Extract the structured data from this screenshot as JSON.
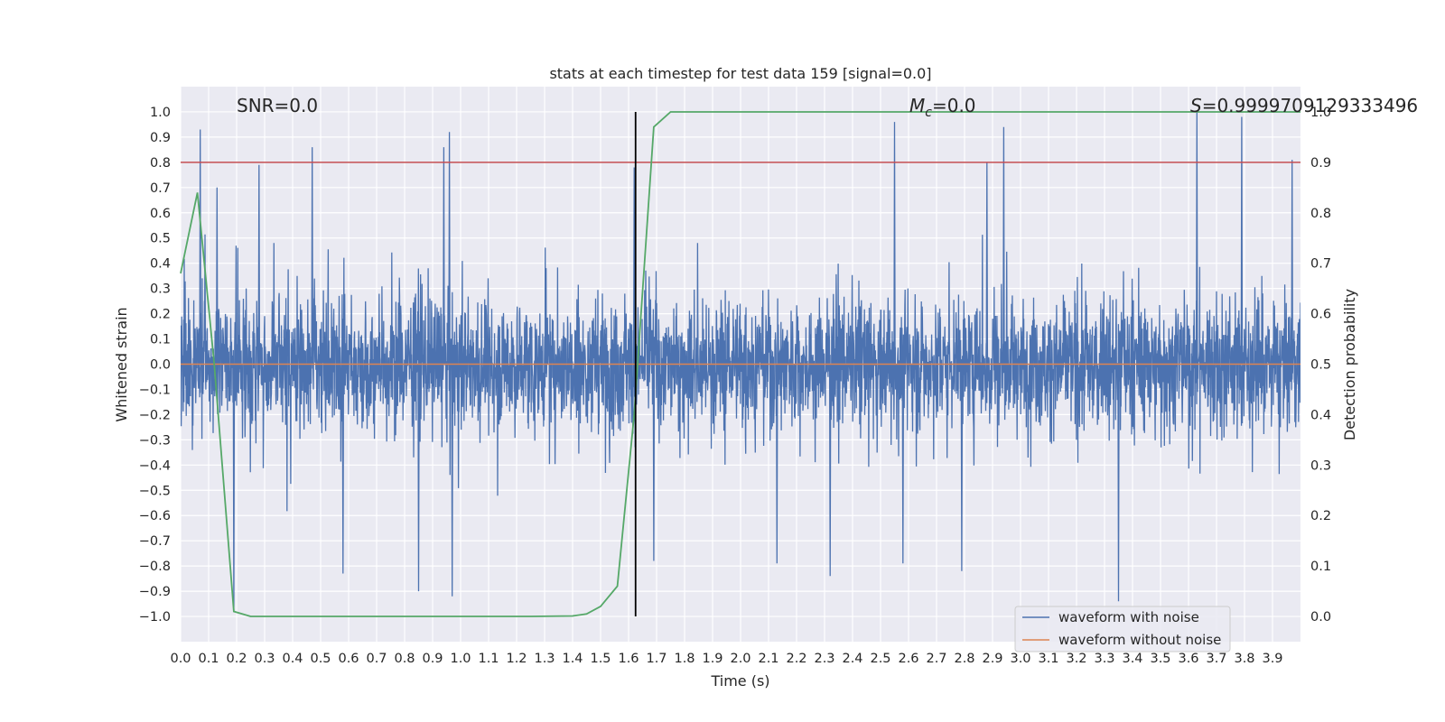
{
  "chart_data": {
    "type": "line",
    "title": "stats at each timestep for test data 159 [signal=0.0]",
    "xlabel": "Time (s)",
    "ylabel": "Whitened strain",
    "y2label": "Detection probability",
    "xlim": [
      0.0,
      4.0
    ],
    "ylim": [
      -1.1,
      1.1
    ],
    "y2lim": [
      -0.05,
      1.05
    ],
    "grid": true,
    "legend_placement": "lower-right",
    "x_ticks": [
      "0.0",
      "0.1",
      "0.2",
      "0.3",
      "0.4",
      "0.5",
      "0.6",
      "0.7",
      "0.8",
      "0.9",
      "1.0",
      "1.1",
      "1.2",
      "1.3",
      "1.4",
      "1.5",
      "1.6",
      "1.7",
      "1.8",
      "1.9",
      "2.0",
      "2.1",
      "2.2",
      "2.3",
      "2.4",
      "2.5",
      "2.6",
      "2.7",
      "2.8",
      "2.9",
      "3.0",
      "3.1",
      "3.2",
      "3.3",
      "3.4",
      "3.5",
      "3.6",
      "3.7",
      "3.8",
      "3.9"
    ],
    "y_ticks": [
      "1.0",
      "0.9",
      "0.8",
      "0.7",
      "0.6",
      "0.5",
      "0.4",
      "0.3",
      "0.2",
      "0.1",
      "0.0",
      "−0.1",
      "−0.2",
      "−0.3",
      "−0.4",
      "−0.5",
      "−0.6",
      "−0.7",
      "−0.8",
      "−0.9",
      "−1.0"
    ],
    "y2_ticks": [
      "1.0",
      "0.9",
      "0.8",
      "0.7",
      "0.6",
      "0.5",
      "0.4",
      "0.3",
      "0.2",
      "0.1",
      "0.0"
    ],
    "annotations": {
      "snr": "SNR=0.0",
      "mc_symbol": "M",
      "mc_subscript": "c",
      "mc_value": "=0.0",
      "s_symbol": "S",
      "s_value": "=0.9999709129333496"
    },
    "threshold": {
      "value": 0.9,
      "axis": "y2",
      "color": "#c44e52"
    },
    "vline": {
      "x": 1.625,
      "color": "#000000"
    },
    "series": [
      {
        "name": "waveform with noise",
        "axis": "y",
        "color": "#4c72b0",
        "noise_description": "dense noise trace, max absolute about 1.0",
        "peaks": [
          {
            "x": 0.07,
            "y": 0.93
          },
          {
            "x": 0.13,
            "y": 0.7
          },
          {
            "x": 0.19,
            "y": -0.98
          },
          {
            "x": 0.28,
            "y": 0.79
          },
          {
            "x": 0.47,
            "y": 0.86
          },
          {
            "x": 0.58,
            "y": -0.83
          },
          {
            "x": 0.85,
            "y": -0.9
          },
          {
            "x": 0.94,
            "y": 0.86
          },
          {
            "x": 0.96,
            "y": 0.92
          },
          {
            "x": 0.97,
            "y": -0.92
          },
          {
            "x": 1.62,
            "y": 0.78
          },
          {
            "x": 1.69,
            "y": -0.78
          },
          {
            "x": 2.13,
            "y": -0.79
          },
          {
            "x": 2.32,
            "y": -0.84
          },
          {
            "x": 2.55,
            "y": 0.96
          },
          {
            "x": 2.58,
            "y": -0.79
          },
          {
            "x": 2.79,
            "y": -0.82
          },
          {
            "x": 2.88,
            "y": 0.8
          },
          {
            "x": 2.94,
            "y": 0.94
          },
          {
            "x": 3.35,
            "y": -0.94
          },
          {
            "x": 3.63,
            "y": 1.0
          },
          {
            "x": 3.79,
            "y": 0.98
          },
          {
            "x": 3.97,
            "y": 0.81
          }
        ]
      },
      {
        "name": "waveform without noise",
        "axis": "y",
        "color": "#dd8452",
        "x": [
          0.0,
          4.0
        ],
        "y": [
          0.0,
          0.0
        ]
      },
      {
        "name": "detection probability",
        "axis": "y2",
        "color": "#55a868",
        "x": [
          0.0,
          0.06,
          0.12,
          0.19,
          0.25,
          0.5,
          0.75,
          1.0,
          1.25,
          1.4,
          1.45,
          1.5,
          1.56,
          1.62,
          1.69,
          1.75,
          2.0,
          3.0,
          4.0
        ],
        "y": [
          0.68,
          0.84,
          0.5,
          0.01,
          0.0,
          0.0,
          0.0,
          0.0,
          0.0,
          0.001,
          0.005,
          0.02,
          0.06,
          0.4,
          0.97,
          1.0,
          1.0,
          1.0,
          1.0
        ]
      }
    ]
  }
}
